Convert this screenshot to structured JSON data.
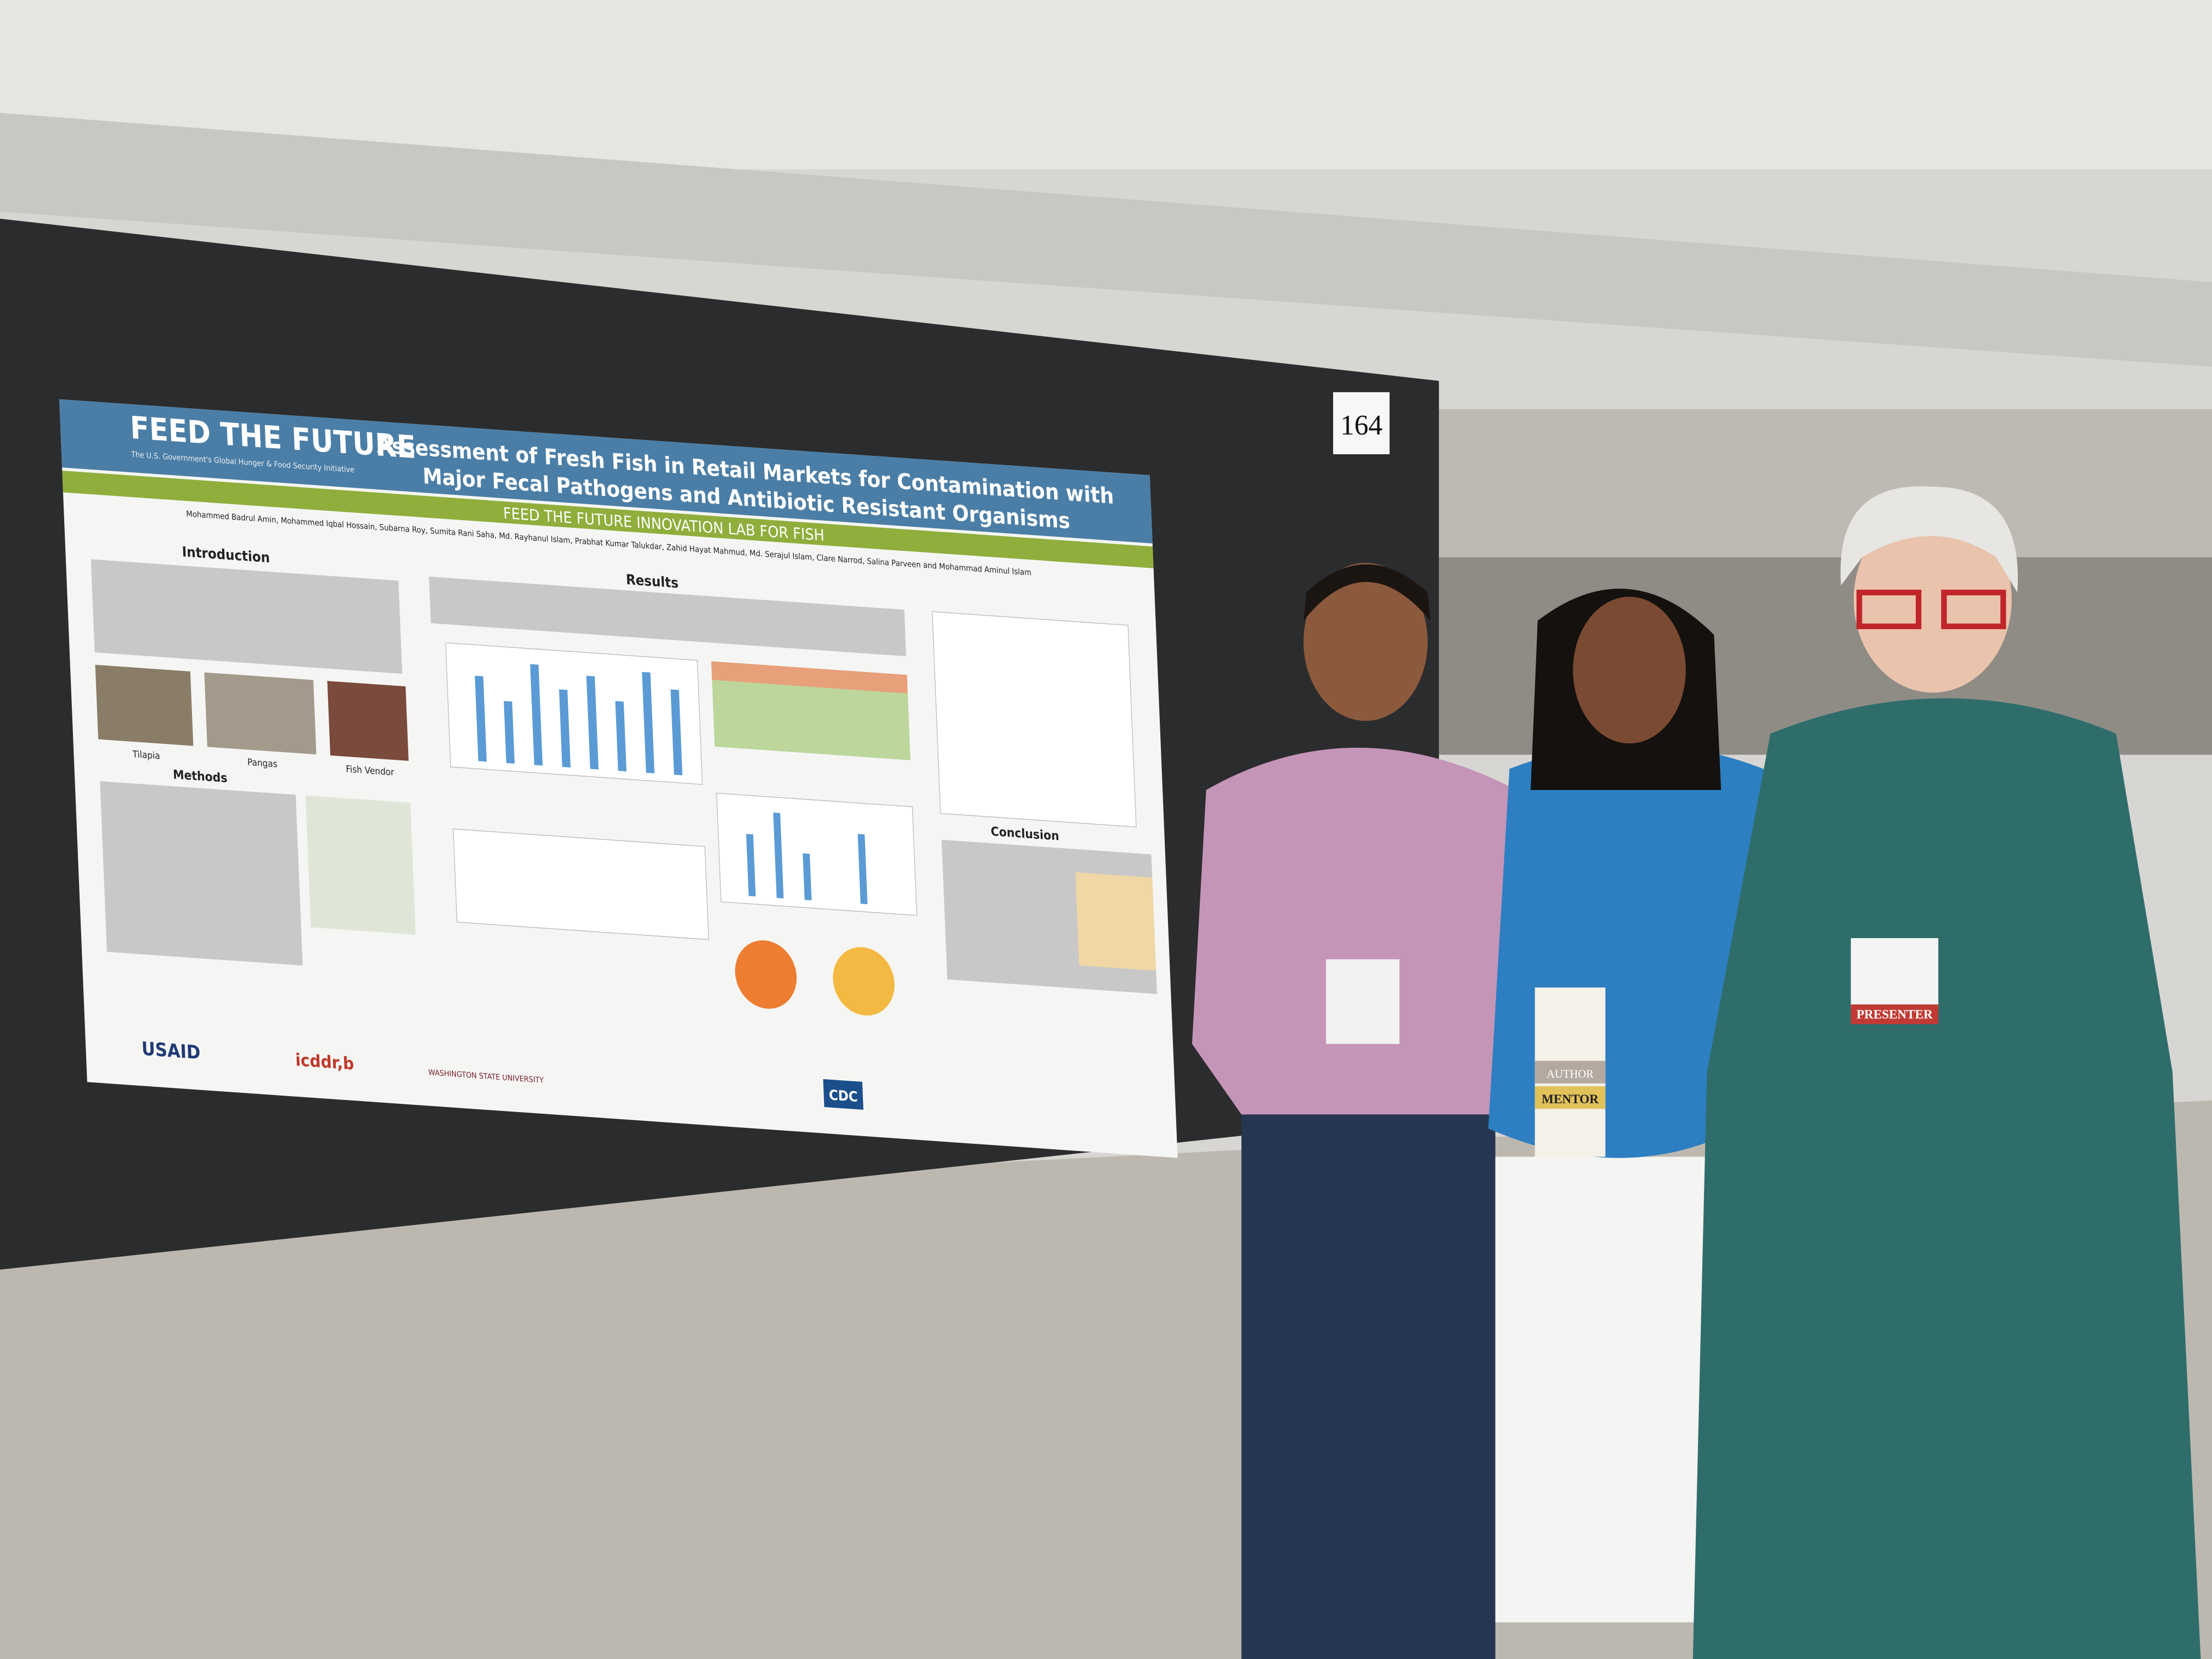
{
  "board_number": "164",
  "poster": {
    "logo": "FEED THE FUTURE",
    "logo_tagline": "The U.S. Government's Global Hunger & Food Security Initiative",
    "title_line1": "Assessment of Fresh Fish in Retail Markets for Contamination with",
    "title_line2": "Major Fecal  Pathogens and Antibiotic Resistant Organisms",
    "banner": "FEED THE FUTURE INNOVATION LAB FOR FISH",
    "authors": "Mohammed Badrul Amin, Mohammed Iqbal Hossain, Subarna Roy, Sumita Rani Saha, Md. Rayhanul Islam, Prabhat Kumar Talukdar, Zahid Hayat Mahmud, Md. Serajul Islam, Clare Narrod, Salina Parveen and Mohammad Aminul Islam",
    "sections": [
      "Introduction",
      "Results",
      "Methods",
      "Conclusion"
    ],
    "photo_captions": [
      "Tilapia",
      "Pangas",
      "Fish Vendor"
    ],
    "logos": [
      "USAID",
      "icddr,b",
      "WASHINGTON STATE UNIVERSITY",
      "CDC"
    ]
  },
  "badges": [
    "MENTOR",
    "AUTHOR",
    "PRESENTER"
  ]
}
